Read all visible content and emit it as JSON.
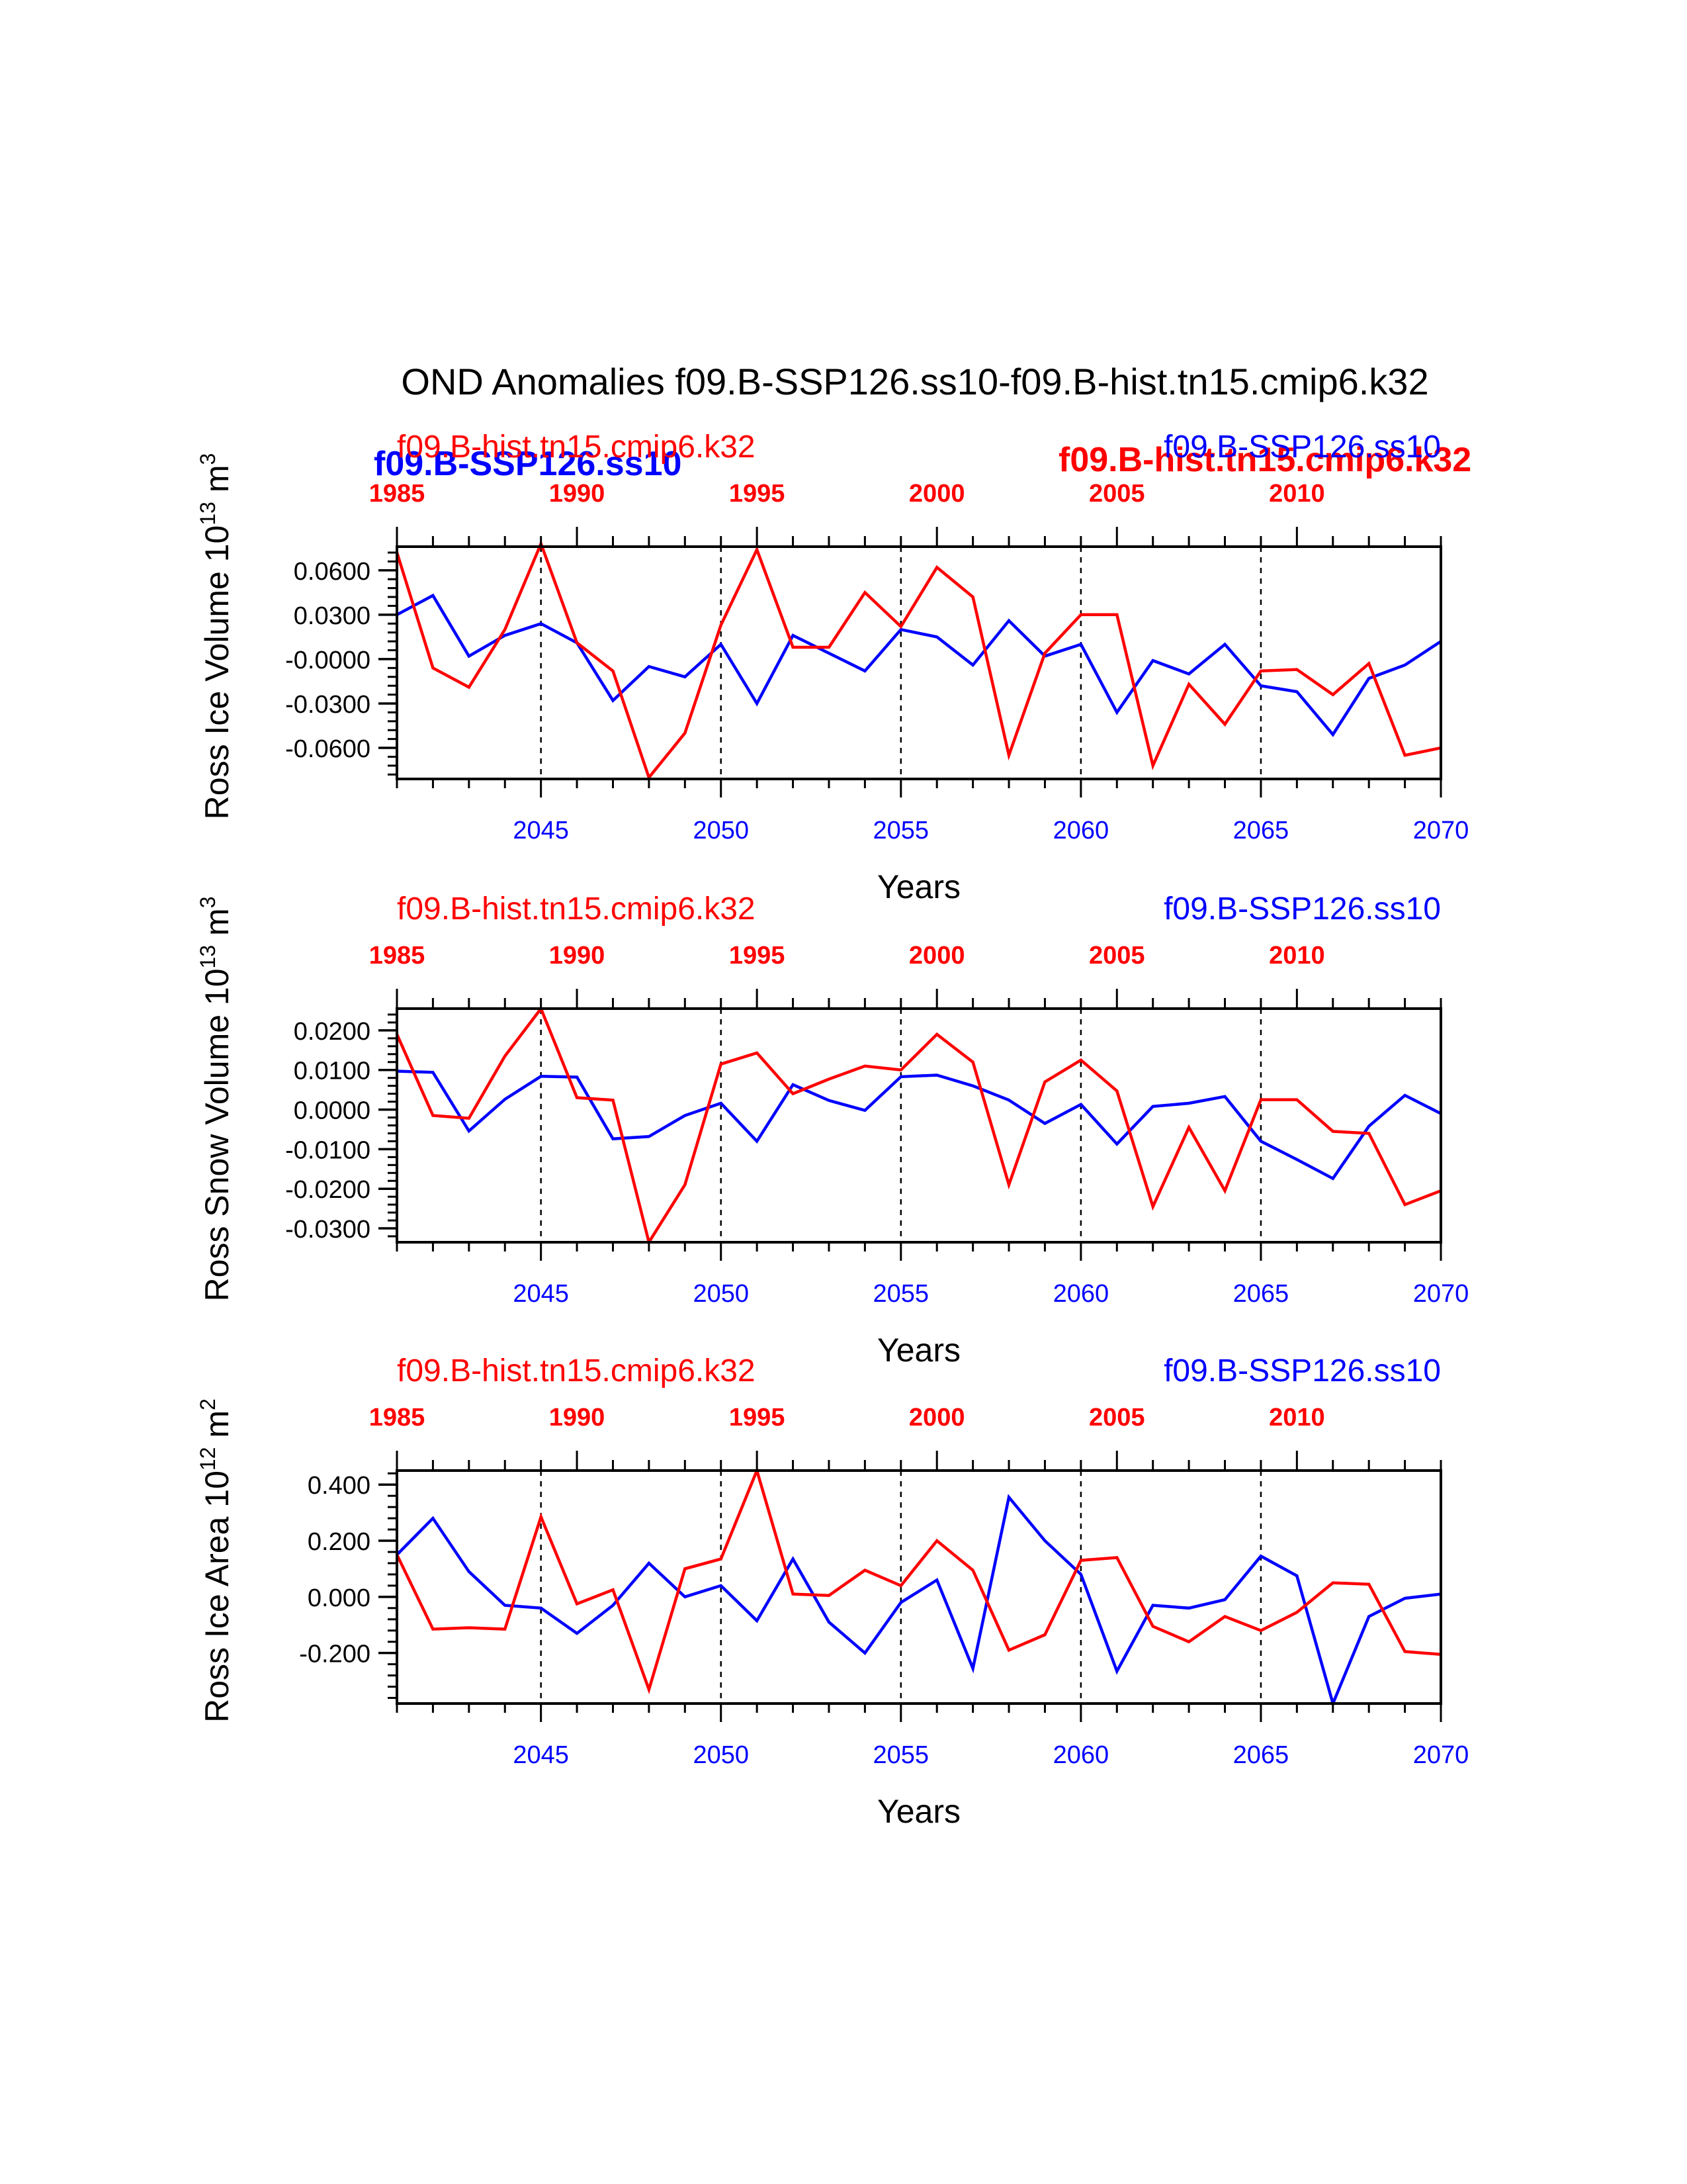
{
  "page": {
    "title": "OND Anomalies f09.B-SSP126.ss10-f09.B-hist.tn15.cmip6.k32",
    "overlay_labels": {
      "blue_bold": "f09.B-SSP126.ss10",
      "red_bold": "f09.B-hist.tn15.cmip6.k32"
    }
  },
  "colors": {
    "case1": "#0000ff",
    "case2": "#ff0000",
    "axis": "#000000"
  },
  "chart_data": [
    {
      "type": "line",
      "ylabel": "Ross Ice Volume 10",
      "ylabel_exp": "13",
      "ylabel_unit": " m",
      "ylabel_unit_exp": "3",
      "xlabel": "Years",
      "top_left_label": "f09.B-hist.tn15.cmip6.k32",
      "top_right_label": "f09.B-SSP126.ss10",
      "ylim": [
        -0.081,
        0.076
      ],
      "yticks": [
        0.06,
        0.03,
        0.0,
        -0.03,
        -0.06
      ],
      "ytick_labels": [
        "0.0600",
        "0.0300",
        "-0.0000",
        "-0.0300",
        "-0.0600"
      ],
      "yminor_step": 0.006,
      "series": [
        {
          "name": "f09.B-SSP126.ss10",
          "color": "#0000ff",
          "x": [
            2041,
            2042,
            2043,
            2044,
            2045,
            2046,
            2047,
            2048,
            2049,
            2050,
            2051,
            2052,
            2053,
            2054,
            2055,
            2056,
            2057,
            2058,
            2059,
            2060,
            2061,
            2062,
            2063,
            2064,
            2065,
            2066,
            2067,
            2068,
            2069,
            2070
          ],
          "values": [
            0.03,
            0.043,
            0.002,
            0.016,
            0.024,
            0.011,
            -0.028,
            -0.005,
            -0.012,
            0.01,
            -0.03,
            0.016,
            0.004,
            -0.008,
            0.02,
            0.015,
            -0.004,
            0.026,
            0.002,
            0.01,
            -0.036,
            -0.001,
            -0.01,
            0.01,
            -0.018,
            -0.022,
            -0.051,
            -0.013,
            -0.004,
            0.012
          ]
        },
        {
          "name": "f09.B-hist.tn15.cmip6.k32",
          "color": "#ff0000",
          "x": [
            1985,
            1986,
            1987,
            1988,
            1989,
            1990,
            1991,
            1992,
            1993,
            1994,
            1995,
            1996,
            1997,
            1998,
            1999,
            2000,
            2001,
            2002,
            2003,
            2004,
            2005,
            2006,
            2007,
            2008,
            2009,
            2010,
            2011,
            2012,
            2013,
            2014
          ],
          "values": [
            0.072,
            -0.006,
            -0.019,
            0.02,
            0.078,
            0.011,
            -0.008,
            -0.08,
            -0.05,
            0.023,
            0.074,
            0.008,
            0.008,
            0.045,
            0.022,
            0.062,
            0.042,
            -0.065,
            0.004,
            0.03,
            0.03,
            -0.072,
            -0.017,
            -0.044,
            -0.008,
            -0.007,
            -0.024,
            -0.003,
            -0.065,
            -0.06
          ]
        }
      ]
    },
    {
      "type": "line",
      "ylabel": "Ross Snow Volume 10",
      "ylabel_exp": "13",
      "ylabel_unit": " m",
      "ylabel_unit_exp": "3",
      "xlabel": "Years",
      "top_left_label": "f09.B-hist.tn15.cmip6.k32",
      "top_right_label": "f09.B-SSP126.ss10",
      "ylim": [
        -0.0335,
        0.0255
      ],
      "yticks": [
        0.02,
        0.01,
        0.0,
        -0.01,
        -0.02,
        -0.03
      ],
      "ytick_labels": [
        "0.0200",
        "0.0100",
        "0.0000",
        "-0.0100",
        "-0.0200",
        "-0.0300"
      ],
      "yminor_step": 0.002,
      "series": [
        {
          "name": "f09.B-SSP126.ss10",
          "color": "#0000ff",
          "x": [
            2041,
            2042,
            2043,
            2044,
            2045,
            2046,
            2047,
            2048,
            2049,
            2050,
            2051,
            2052,
            2053,
            2054,
            2055,
            2056,
            2057,
            2058,
            2059,
            2060,
            2061,
            2062,
            2063,
            2064,
            2065,
            2066,
            2067,
            2068,
            2069,
            2070
          ],
          "values": [
            0.0097,
            0.0094,
            -0.0054,
            0.0026,
            0.0084,
            0.0082,
            -0.0074,
            -0.0068,
            -0.0015,
            0.0016,
            -0.008,
            0.0063,
            0.0023,
            -0.0002,
            0.0083,
            0.0087,
            0.006,
            0.0024,
            -0.0035,
            0.0013,
            -0.0087,
            0.0008,
            0.0016,
            0.0033,
            -0.008,
            -0.0126,
            -0.0174,
            -0.0042,
            0.0036,
            -0.001
          ]
        },
        {
          "name": "f09.B-hist.tn15.cmip6.k32",
          "color": "#ff0000",
          "x": [
            1985,
            1986,
            1987,
            1988,
            1989,
            1990,
            1991,
            1992,
            1993,
            1994,
            1995,
            1996,
            1997,
            1998,
            1999,
            2000,
            2001,
            2002,
            2003,
            2004,
            2005,
            2006,
            2007,
            2008,
            2009,
            2010,
            2011,
            2012,
            2013,
            2014
          ],
          "values": [
            0.019,
            -0.0015,
            -0.0022,
            0.0135,
            0.0255,
            0.003,
            0.0024,
            -0.0335,
            -0.019,
            0.0115,
            0.0143,
            0.004,
            0.0077,
            0.011,
            0.01,
            0.019,
            0.012,
            -0.019,
            0.007,
            0.0125,
            0.0047,
            -0.0245,
            -0.0045,
            -0.0205,
            0.0025,
            0.0025,
            -0.0055,
            -0.006,
            -0.024,
            -0.0205
          ]
        }
      ]
    },
    {
      "type": "line",
      "ylabel": "Ross Ice Area 10",
      "ylabel_exp": "12",
      "ylabel_unit": " m",
      "ylabel_unit_exp": "2",
      "xlabel": "Years",
      "top_left_label": "f09.B-hist.tn15.cmip6.k32",
      "top_right_label": "f09.B-SSP126.ss10",
      "ylim": [
        -0.38,
        0.45
      ],
      "yticks": [
        0.4,
        0.2,
        0.0,
        -0.2
      ],
      "ytick_labels": [
        "0.400",
        "0.200",
        "0.000",
        "-0.200"
      ],
      "yminor_step": 0.04,
      "series": [
        {
          "name": "f09.B-SSP126.ss10",
          "color": "#0000ff",
          "x": [
            2041,
            2042,
            2043,
            2044,
            2045,
            2046,
            2047,
            2048,
            2049,
            2050,
            2051,
            2052,
            2053,
            2054,
            2055,
            2056,
            2057,
            2058,
            2059,
            2060,
            2061,
            2062,
            2063,
            2064,
            2065,
            2066,
            2067,
            2068,
            2069,
            2070
          ],
          "values": [
            0.15,
            0.28,
            0.09,
            -0.03,
            -0.04,
            -0.13,
            -0.03,
            0.12,
            0.0,
            0.04,
            -0.085,
            0.135,
            -0.09,
            -0.2,
            -0.02,
            0.06,
            -0.255,
            0.355,
            0.2,
            0.08,
            -0.265,
            -0.03,
            -0.04,
            -0.01,
            0.145,
            0.075,
            -0.38,
            -0.07,
            -0.005,
            0.01
          ]
        },
        {
          "name": "f09.B-hist.tn15.cmip6.k32",
          "color": "#ff0000",
          "x": [
            1985,
            1986,
            1987,
            1988,
            1989,
            1990,
            1991,
            1992,
            1993,
            1994,
            1995,
            1996,
            1997,
            1998,
            1999,
            2000,
            2001,
            2002,
            2003,
            2004,
            2005,
            2006,
            2007,
            2008,
            2009,
            2010,
            2011,
            2012,
            2013,
            2014
          ],
          "values": [
            0.15,
            -0.115,
            -0.11,
            -0.115,
            0.285,
            -0.025,
            0.025,
            -0.33,
            0.1,
            0.135,
            0.45,
            0.01,
            0.005,
            0.095,
            0.04,
            0.2,
            0.095,
            -0.19,
            -0.135,
            0.13,
            0.14,
            -0.105,
            -0.16,
            -0.07,
            -0.12,
            -0.055,
            0.05,
            0.045,
            -0.195,
            -0.205
          ]
        }
      ]
    }
  ],
  "axes_shared": {
    "bottom_ticks": [
      2045,
      2050,
      2055,
      2060,
      2065,
      2070
    ],
    "bottom_tick_labels": [
      "2045",
      "2050",
      "2055",
      "2060",
      "2065",
      "2070"
    ],
    "top_ticks": [
      1985,
      1990,
      1995,
      2000,
      2005,
      2010
    ],
    "top_tick_labels": [
      "1985",
      "1990",
      "1995",
      "2000",
      "2005",
      "2010"
    ]
  }
}
